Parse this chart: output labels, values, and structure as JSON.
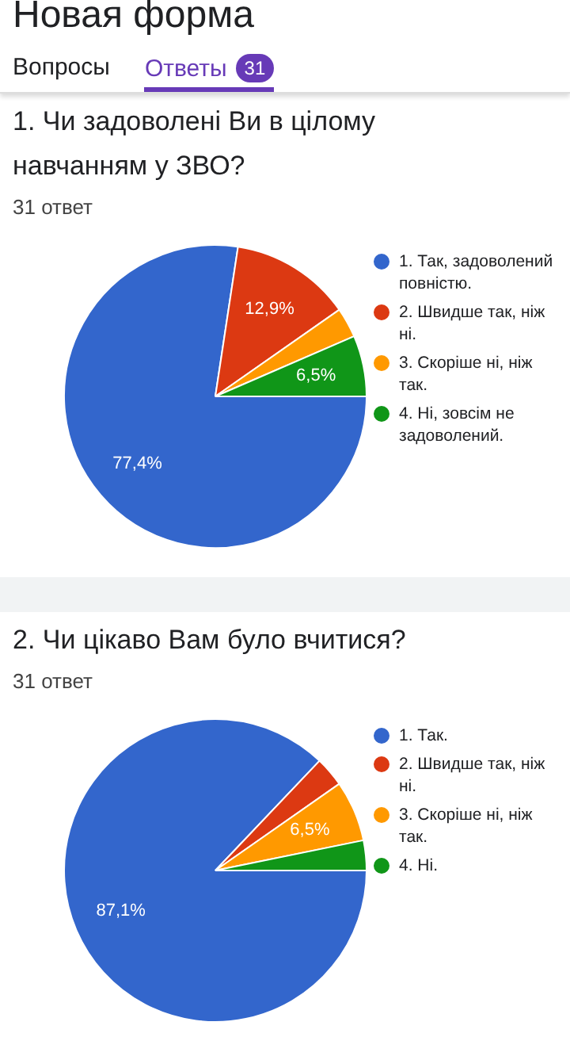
{
  "chart_data": [
    {
      "type": "pie",
      "title": "1. Чи задоволені Ви в цілому навчанням у ЗВО?",
      "subtitle": "31 ответ",
      "annotations": [
        "Новая форма",
        "Вопросы",
        "Ответы",
        "31"
      ],
      "categories": [
        "1. Так, задоволений повністю.",
        "2. Швидше так, ніж ні.",
        "3. Скоріше ні, ніж так.",
        "4. Ні, зовсім не задоволений."
      ],
      "values": [
        77.4,
        12.9,
        3.2,
        6.5
      ],
      "value_labels": [
        "77,4%",
        "12,9%",
        null,
        "6,5%"
      ],
      "colors": [
        "#3366cc",
        "#dc3912",
        "#ff9900",
        "#109618"
      ],
      "legend": "right"
    },
    {
      "type": "pie",
      "title": "2. Чи цікаво Вам було вчитися?",
      "subtitle": "31 ответ",
      "categories": [
        "1. Так.",
        "2. Швидше так, ніж ні.",
        "3. Скоріше ні, ніж так.",
        "4. Ні."
      ],
      "values": [
        87.1,
        3.2,
        6.5,
        3.2
      ],
      "value_labels": [
        "87,1%",
        null,
        "6,5%",
        null
      ],
      "colors": [
        "#3366cc",
        "#dc3912",
        "#ff9900",
        "#109618"
      ],
      "legend": "right"
    }
  ]
}
